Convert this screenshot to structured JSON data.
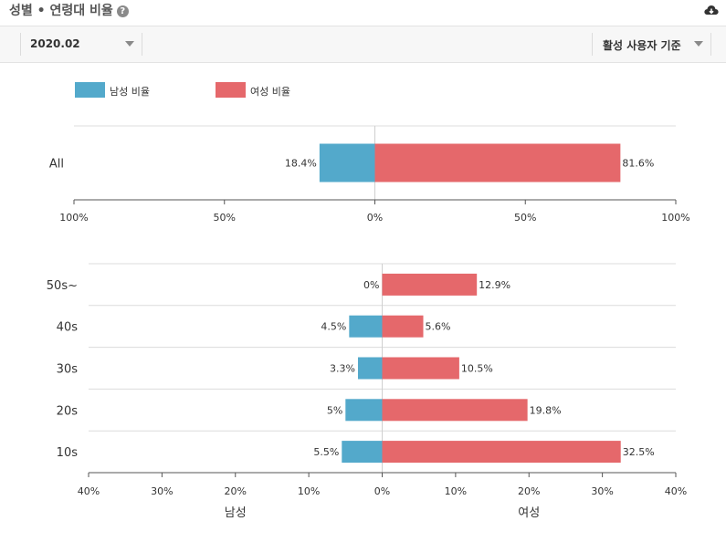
{
  "header": {
    "title": "성별 • 연령대 비율",
    "help_icon": "question-circle-icon",
    "download_icon": "cloud-download-icon"
  },
  "filters": {
    "date_value": "2020.02",
    "basis_value": "활성 사용자 기준"
  },
  "legend": {
    "male_label": "남성 비율",
    "female_label": "여성 비율"
  },
  "colors": {
    "male": "#53a9cb",
    "female": "#e5686b"
  },
  "chart_data": [
    {
      "type": "bar",
      "orientation": "horizontal-diverging",
      "categories": [
        "All"
      ],
      "series": [
        {
          "name": "남성 비율",
          "values": [
            18.4
          ],
          "labels": [
            "18.4%"
          ]
        },
        {
          "name": "여성 비율",
          "values": [
            81.6
          ],
          "labels": [
            "81.6%"
          ]
        }
      ],
      "xlim": [
        -100,
        100
      ],
      "xticks": [
        "100%",
        "50%",
        "0%",
        "50%",
        "100%"
      ],
      "legend": "top-left",
      "grid": false
    },
    {
      "type": "bar",
      "orientation": "horizontal-diverging",
      "categories": [
        "50s~",
        "40s",
        "30s",
        "20s",
        "10s"
      ],
      "series": [
        {
          "name": "남성 비율",
          "values": [
            0,
            4.5,
            3.3,
            5,
            5.5
          ],
          "labels": [
            "0%",
            "4.5%",
            "3.3%",
            "5%",
            "5.5%"
          ]
        },
        {
          "name": "여성 비율",
          "values": [
            12.9,
            5.6,
            10.5,
            19.8,
            32.5
          ],
          "labels": [
            "12.9%",
            "5.6%",
            "10.5%",
            "19.8%",
            "32.5%"
          ]
        }
      ],
      "xlim": [
        -40,
        40
      ],
      "xticks": [
        "40%",
        "30%",
        "20%",
        "10%",
        "0%",
        "10%",
        "20%",
        "30%",
        "40%"
      ],
      "side_labels": {
        "left": "남성",
        "right": "여성"
      },
      "grid": false
    }
  ]
}
